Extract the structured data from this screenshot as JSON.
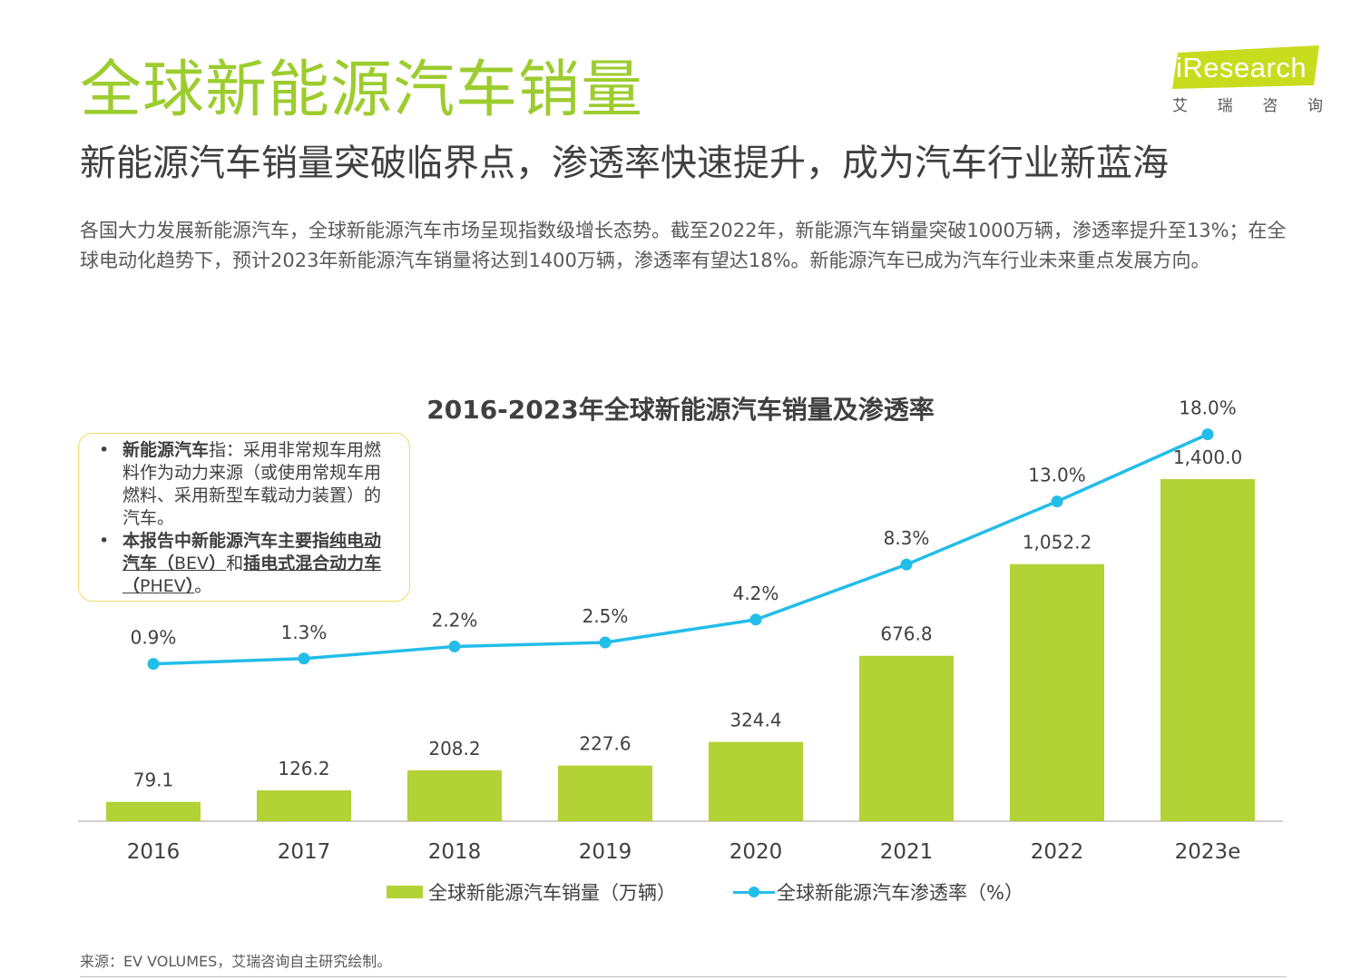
{
  "header": {
    "title": "全球新能源汽车销量",
    "subtitle": "新能源汽车销量突破临界点，渗透率快速提升，成为汽车行业新蓝海",
    "intro": "各国大力发展新能源汽车，全球新能源汽车市场呈现指数级增长态势。截至2022年，新能源汽车销量突破1000万辆，渗透率提升至13%；在全球电动化趋势下，预计2023年新能源汽车销量将达到1400万辆，渗透率有望达18%。新能源汽车已成为汽车行业未来重点发展方向。"
  },
  "logo": {
    "text": "iResearch",
    "cn_chars": [
      "艾",
      "瑞",
      "咨",
      "询"
    ],
    "badge_color": "#c8dc1e"
  },
  "note": {
    "item1_bold": "新能源汽车",
    "item1_text": "指：采用非常规车用燃料作为动力来源（或使用常规车用燃料、采用新型车载动力装置）的汽车。",
    "item2_bold_a": "本报告中新能源汽车主要指",
    "item2_u1": "纯电动汽车（",
    "item2_u1_abbr": "BEV",
    "item2_u1_close": "）",
    "item2_mid": "和",
    "item2_u2": "插电式混合动力车（",
    "item2_u2_abbr": "PHEV",
    "item2_u2_close": "）",
    "item2_end": "。"
  },
  "chart_data": {
    "type": "bar",
    "title": "2016-2023年全球新能源汽车销量及渗透率",
    "categories": [
      "2016",
      "2017",
      "2018",
      "2019",
      "2020",
      "2021",
      "2022",
      "2023e"
    ],
    "series": [
      {
        "name": "全球新能源汽车销量（万辆）",
        "type": "bar",
        "values": [
          79.1,
          126.2,
          208.2,
          227.6,
          324.4,
          676.8,
          1052.2,
          1400.0
        ],
        "labels": [
          "79.1",
          "126.2",
          "208.2",
          "227.6",
          "324.4",
          "676.8",
          "1,052.2",
          "1,400.0"
        ],
        "color": "#b2d235"
      },
      {
        "name": "全球新能源汽车渗透率（%）",
        "type": "line",
        "values": [
          0.9,
          1.3,
          2.2,
          2.5,
          4.2,
          8.3,
          13.0,
          18.0
        ],
        "labels": [
          "0.9%",
          "1.3%",
          "2.2%",
          "2.5%",
          "4.2%",
          "8.3%",
          "13.0%",
          "18.0%"
        ],
        "color": "#23bde9"
      }
    ],
    "xlabel": "",
    "ylabel": "",
    "legend_position": "bottom",
    "grid": false
  },
  "source": "来源：EV VOLUMES，艾瑞咨询自主研究绘制。"
}
